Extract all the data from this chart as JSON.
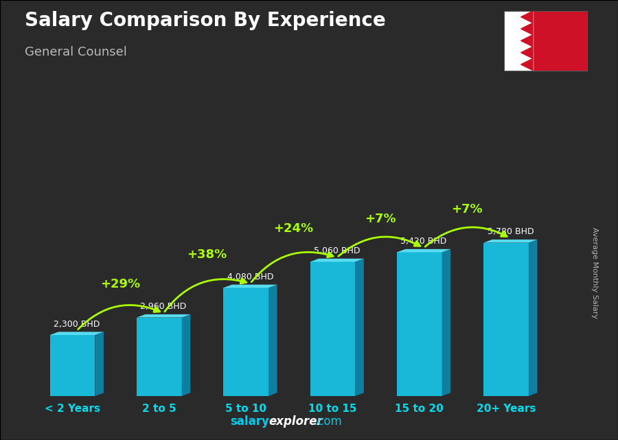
{
  "title": "Salary Comparison By Experience",
  "subtitle": "General Counsel",
  "ylabel": "Average Monthly Salary",
  "categories": [
    "< 2 Years",
    "2 to 5",
    "5 to 10",
    "10 to 15",
    "15 to 20",
    "20+ Years"
  ],
  "values": [
    2300,
    2960,
    4080,
    5060,
    5420,
    5780
  ],
  "value_labels": [
    "2,300 BHD",
    "2,960 BHD",
    "4,080 BHD",
    "5,060 BHD",
    "5,420 BHD",
    "5,780 BHD"
  ],
  "pct_changes": [
    "+29%",
    "+38%",
    "+24%",
    "+7%",
    "+7%"
  ],
  "bar_color_front": "#1ab8d8",
  "bar_color_side": "#0e7fa0",
  "bar_color_top": "#5adcf0",
  "bg_dark": "#1c1c1c",
  "title_color": "#ffffff",
  "subtitle_color": "#bbbbbb",
  "label_color": "#ffffff",
  "pct_color": "#aaff00",
  "tick_color": "#00ddee",
  "footer_salary_color": "#00ddee",
  "footer_explorer_color": "#ffffff"
}
